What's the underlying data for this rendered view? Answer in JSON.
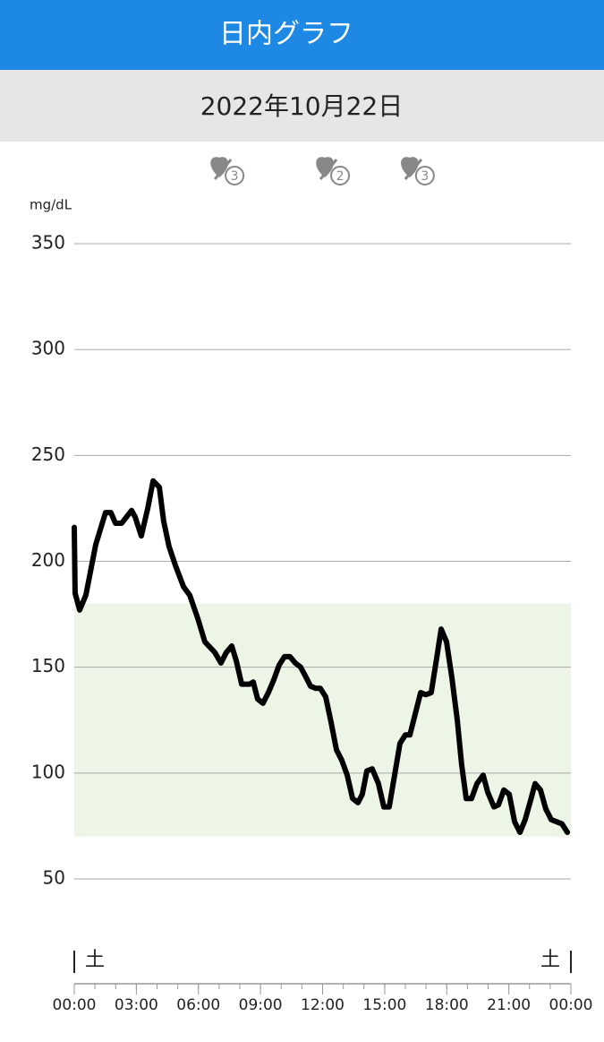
{
  "header": {
    "title": "日内グラフ",
    "date": "2022年10月22日"
  },
  "chart_data": {
    "type": "line",
    "y_unit": "mg/dL",
    "x": [
      0,
      0.04,
      0.26,
      0.56,
      1.04,
      1.51,
      1.77,
      1.99,
      2.29,
      2.77,
      2.94,
      3.24,
      3.55,
      3.81,
      4.11,
      4.32,
      4.58,
      4.89,
      5.28,
      5.58,
      5.97,
      6.31,
      6.79,
      7.09,
      7.35,
      7.61,
      7.83,
      8.09,
      8.48,
      8.65,
      8.86,
      9.12,
      9.38,
      9.64,
      9.9,
      10.16,
      10.42,
      10.68,
      10.94,
      11.16,
      11.42,
      11.68,
      11.89,
      12.15,
      12.41,
      12.67,
      12.93,
      13.19,
      13.45,
      13.71,
      13.92,
      14.14,
      14.4,
      14.7,
      14.96,
      15.22,
      15.48,
      15.74,
      16.0,
      16.22,
      16.48,
      16.74,
      16.99,
      17.25,
      17.51,
      17.73,
      17.99,
      18.25,
      18.51,
      18.72,
      18.94,
      19.2,
      19.46,
      19.76,
      19.98,
      20.28,
      20.5,
      20.76,
      21.02,
      21.28,
      21.54,
      21.79,
      22.05,
      22.27,
      22.53,
      22.79,
      23.05,
      23.31,
      23.57,
      23.83
    ],
    "series": [
      {
        "color": "#000000",
        "values": [
          216,
          185,
          177,
          184,
          208,
          223,
          223,
          218,
          218,
          224,
          221,
          212,
          225,
          238,
          235,
          219,
          207,
          198,
          188,
          184,
          173,
          162,
          157,
          152,
          157,
          160,
          153,
          142,
          142,
          143,
          135,
          133,
          138,
          144,
          151,
          155,
          155,
          152,
          150,
          146,
          141,
          140,
          140,
          136,
          124,
          111,
          106,
          99,
          88,
          86,
          90,
          101,
          102,
          95,
          84,
          84,
          99,
          114,
          118,
          118,
          128,
          138,
          137,
          138,
          154,
          168,
          162,
          145,
          125,
          104,
          88,
          88,
          95,
          99,
          91,
          84,
          85,
          92,
          90,
          77,
          72,
          78,
          87,
          95,
          92,
          83,
          78,
          77,
          76,
          72
        ]
      }
    ],
    "target_range": [
      70,
      180
    ],
    "target_color": "#edf5e6",
    "xlim": [
      0,
      24
    ],
    "xticks": [
      {
        "value": 0,
        "label": "00:00"
      },
      {
        "value": 3,
        "label": "03:00"
      },
      {
        "value": 6,
        "label": "06:00"
      },
      {
        "value": 9,
        "label": "09:00"
      },
      {
        "value": 12,
        "label": "12:00"
      },
      {
        "value": 15,
        "label": "15:00"
      },
      {
        "value": 18,
        "label": "18:00"
      },
      {
        "value": 21,
        "label": "21:00"
      },
      {
        "value": 24,
        "label": "00:00"
      }
    ],
    "ylim": [
      50,
      350
    ],
    "yticks": [
      50,
      100,
      150,
      200,
      250,
      300,
      350
    ],
    "grid": true,
    "day_markers": [
      {
        "x": 0,
        "label": "土"
      },
      {
        "x": 24,
        "label": "土"
      }
    ],
    "events": [
      {
        "x": 7.4,
        "count": 3
      },
      {
        "x": 12.5,
        "count": 2
      },
      {
        "x": 16.6,
        "count": 3
      }
    ]
  }
}
